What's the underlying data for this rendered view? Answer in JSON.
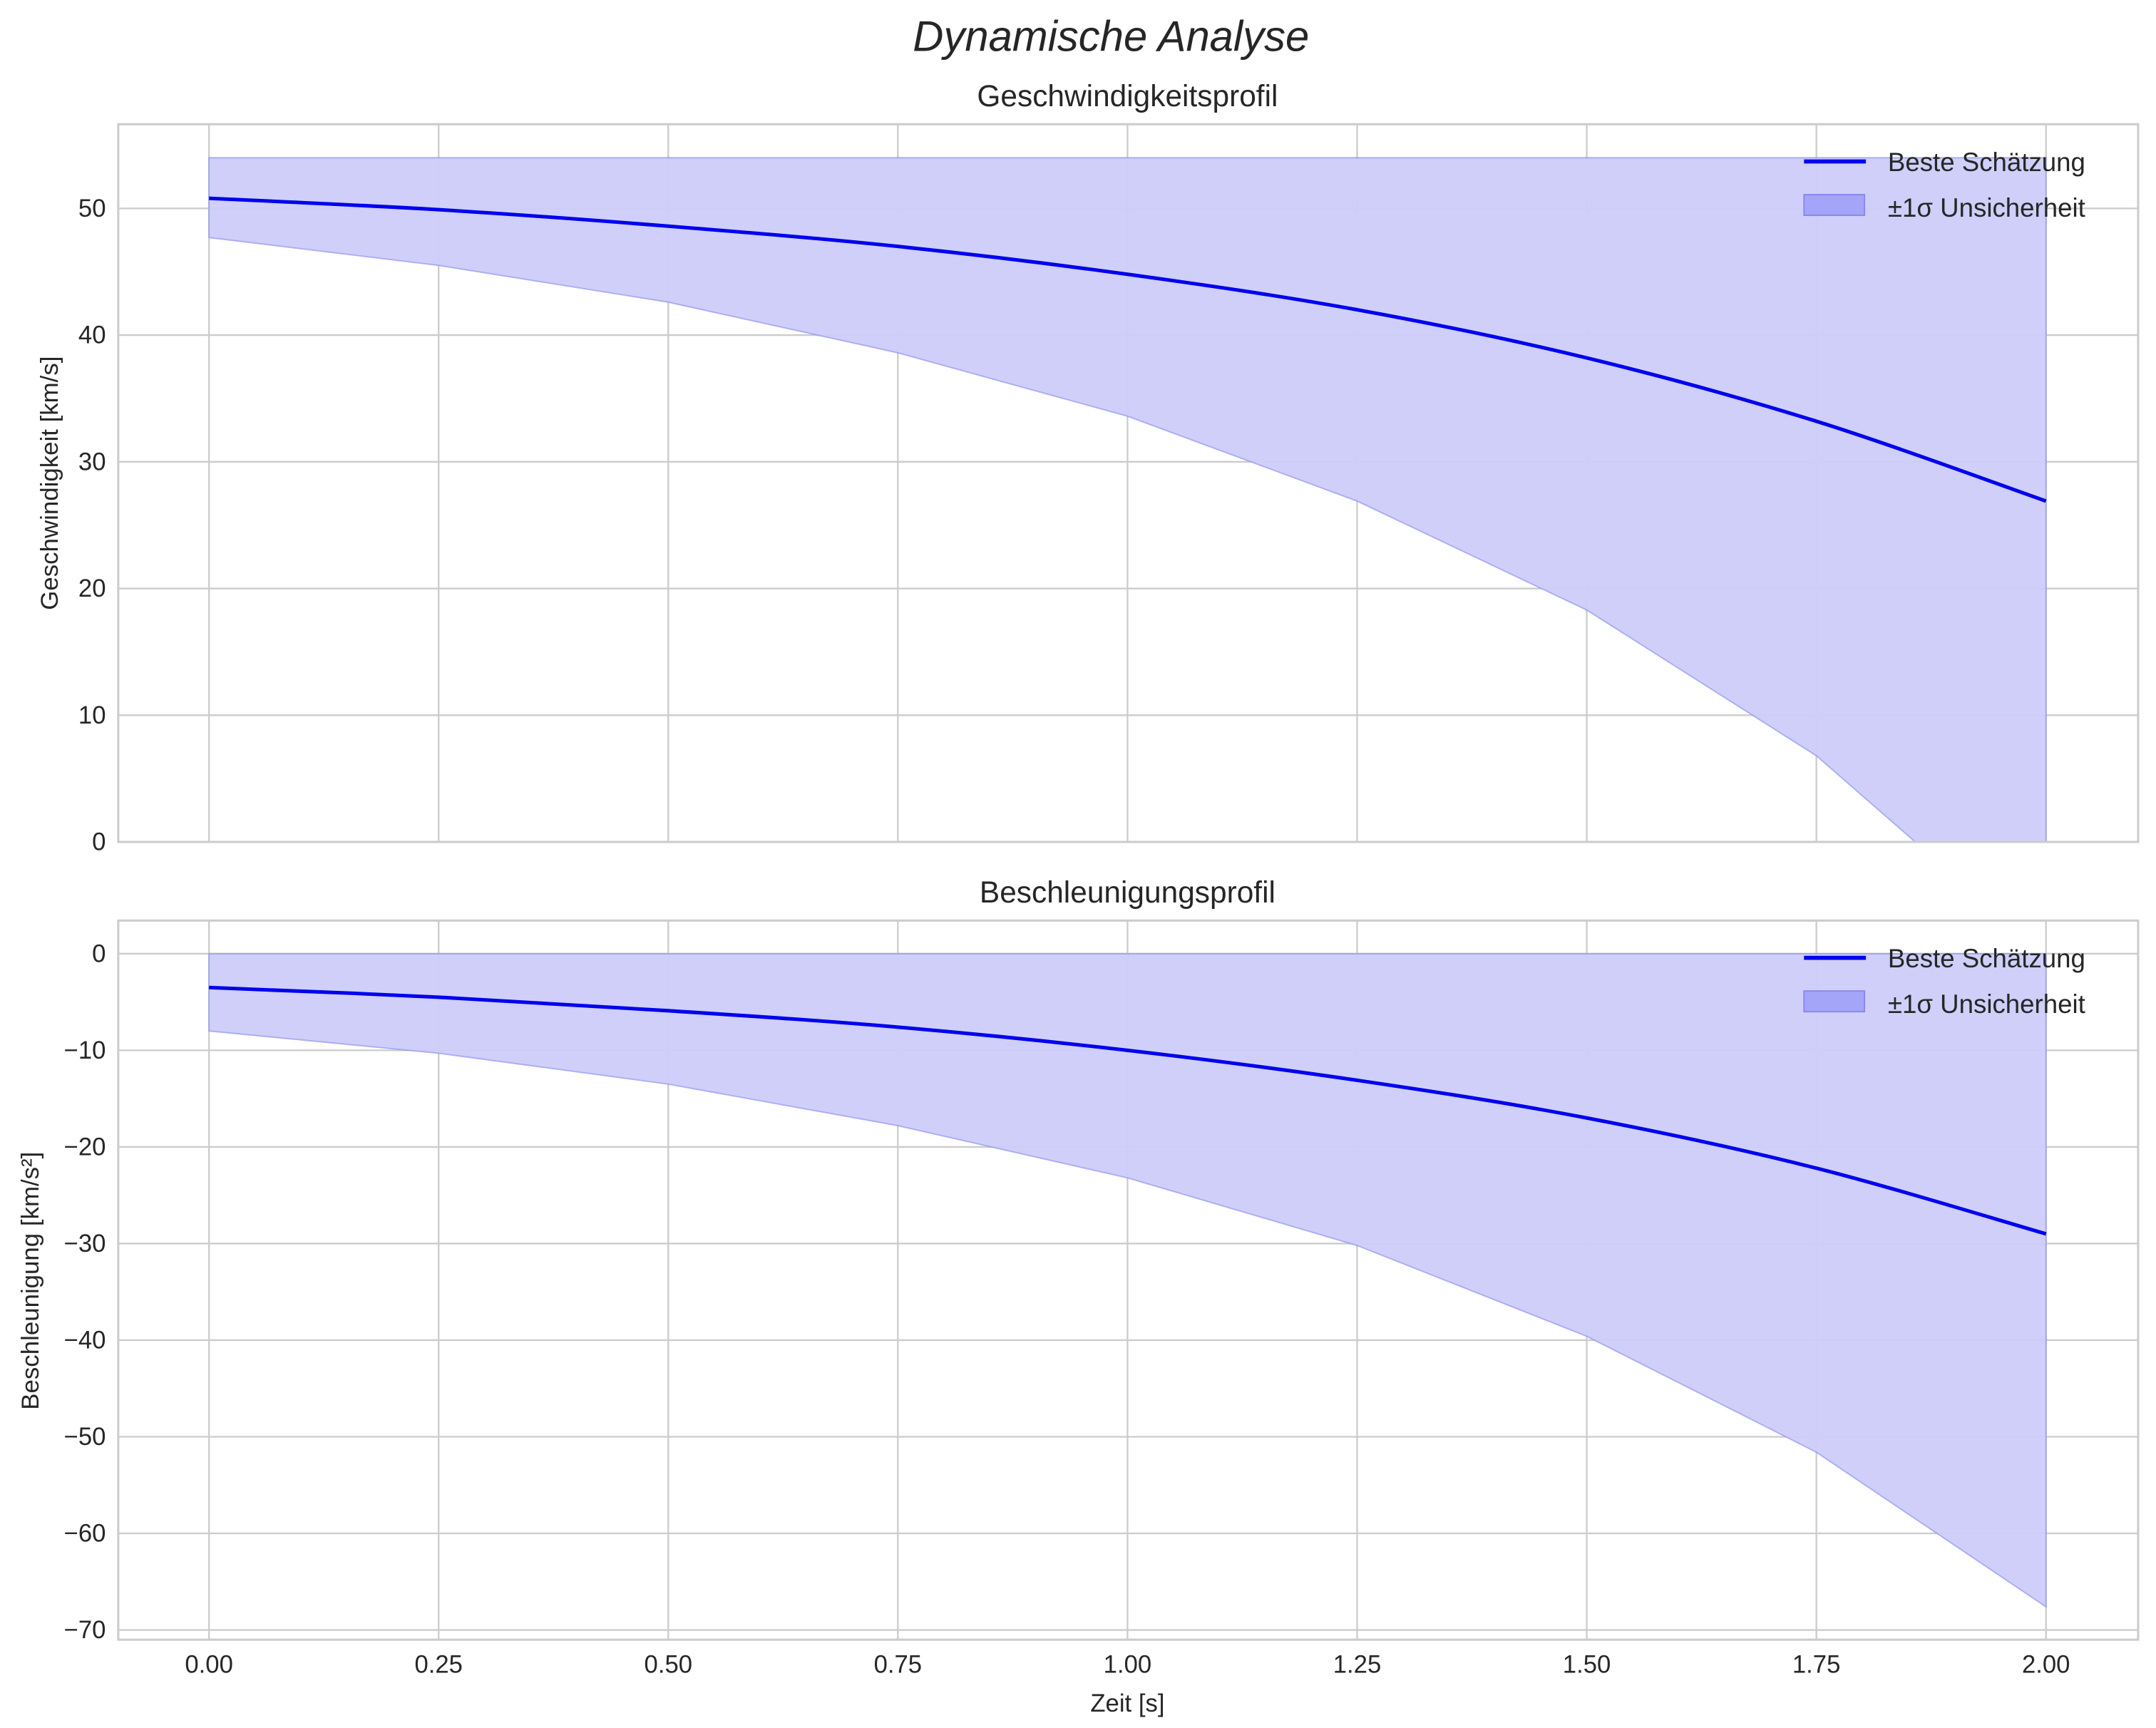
{
  "figure": {
    "suptitle": "Dynamische Analyse",
    "colors": {
      "line": "#0000ee",
      "band_fill": "#ccccfa",
      "band_edge": "#8888ee",
      "grid": "#cccccc",
      "text": "#262626"
    }
  },
  "chart_data": [
    {
      "type": "line",
      "title": "Geschwindigkeitsprofil",
      "xlabel": "",
      "ylabel": "Geschwindigkeit [km/s]",
      "xlim": [
        -0.1,
        2.1
      ],
      "ylim": [
        0,
        56.5
      ],
      "xticks": [
        "0.00",
        "0.25",
        "0.50",
        "0.75",
        "1.00",
        "1.25",
        "1.50",
        "1.75",
        "2.00"
      ],
      "yticks": [
        "0",
        "10",
        "20",
        "30",
        "40",
        "50"
      ],
      "grid": true,
      "legend_position": "upper right",
      "x": [
        0.0,
        0.25,
        0.5,
        0.75,
        1.0,
        1.25,
        1.5,
        1.75,
        2.0
      ],
      "series": [
        {
          "name": "Beste Schätzung",
          "kind": "line",
          "values": [
            50.8,
            49.9,
            48.6,
            47.0,
            44.8,
            42.0,
            38.2,
            33.2,
            26.9
          ]
        },
        {
          "name": "±1σ Unsicherheit",
          "kind": "band",
          "upper": [
            54.0,
            54.0,
            54.0,
            54.0,
            54.0,
            54.0,
            54.0,
            54.0,
            54.0
          ],
          "lower": [
            47.7,
            45.5,
            42.6,
            38.6,
            33.6,
            26.9,
            18.3,
            6.8,
            -9.0
          ]
        }
      ]
    },
    {
      "type": "line",
      "title": "Beschleunigungsprofil",
      "xlabel": "Zeit [s]",
      "ylabel": "Beschleunigung [km/s²]",
      "xlim": [
        -0.1,
        2.1
      ],
      "ylim": [
        -71,
        3.4
      ],
      "xticks": [
        "0.00",
        "0.25",
        "0.50",
        "0.75",
        "1.00",
        "1.25",
        "1.50",
        "1.75",
        "2.00"
      ],
      "yticks": [
        "0",
        "−10",
        "−20",
        "−30",
        "−40",
        "−50",
        "−60",
        "−70"
      ],
      "grid": true,
      "legend_position": "upper right",
      "x": [
        0.0,
        0.25,
        0.5,
        0.75,
        1.0,
        1.25,
        1.5,
        1.75,
        2.0
      ],
      "series": [
        {
          "name": "Beste Schätzung",
          "kind": "line",
          "values": [
            -3.5,
            -4.5,
            -5.9,
            -7.6,
            -10.0,
            -13.1,
            -17.0,
            -22.2,
            -29.0
          ]
        },
        {
          "name": "±1σ Unsicherheit",
          "kind": "band",
          "upper": [
            0,
            0,
            0,
            0,
            0,
            0,
            0,
            0,
            0
          ],
          "lower": [
            -8.0,
            -10.3,
            -13.5,
            -17.8,
            -23.2,
            -30.2,
            -39.6,
            -51.6,
            -67.6
          ]
        }
      ]
    }
  ]
}
